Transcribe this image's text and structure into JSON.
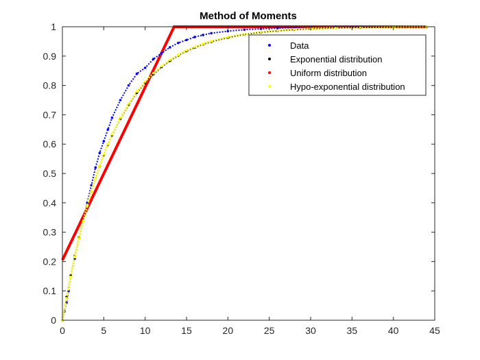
{
  "chart_data": {
    "type": "line",
    "title": "Method of Moments",
    "xlabel": "",
    "ylabel": "",
    "xlim": [
      0,
      45
    ],
    "ylim": [
      0,
      1
    ],
    "xticks": [
      "0",
      "5",
      "10",
      "15",
      "20",
      "25",
      "30",
      "35",
      "40",
      "45"
    ],
    "yticks": [
      "0",
      "0.1",
      "0.2",
      "0.3",
      "0.4",
      "0.5",
      "0.6",
      "0.7",
      "0.8",
      "0.9",
      "1"
    ],
    "grid": false,
    "legend_position": "top-right",
    "series": [
      {
        "name": "Data",
        "color": "#0000ff",
        "style": "dots",
        "x": [
          0,
          0.25,
          0.5,
          0.75,
          1,
          1.5,
          2,
          2.5,
          3,
          3.5,
          4,
          4.5,
          5,
          5.5,
          6,
          7,
          8,
          9,
          10,
          11,
          12,
          13,
          14,
          15,
          16,
          17,
          18,
          20,
          22,
          24,
          26,
          28,
          30,
          33,
          36,
          40,
          44
        ],
        "y": [
          0,
          0.03,
          0.06,
          0.1,
          0.15,
          0.21,
          0.28,
          0.34,
          0.4,
          0.46,
          0.52,
          0.57,
          0.61,
          0.65,
          0.69,
          0.75,
          0.8,
          0.84,
          0.86,
          0.89,
          0.91,
          0.93,
          0.945,
          0.955,
          0.965,
          0.972,
          0.978,
          0.985,
          0.99,
          0.993,
          0.995,
          0.997,
          0.998,
          0.999,
          1.0,
          1.0,
          1.0
        ]
      },
      {
        "name": "Exponential distribution",
        "color": "#000000",
        "style": "dots",
        "x": [
          0,
          0.5,
          1,
          1.5,
          2,
          2.5,
          3,
          3.5,
          4,
          4.5,
          5,
          5.5,
          6,
          7,
          8,
          9,
          10,
          11,
          12,
          13,
          14,
          15,
          16,
          17,
          18,
          20,
          22,
          24,
          26,
          28,
          30,
          33,
          36,
          40,
          44
        ],
        "y": [
          0,
          0.079,
          0.152,
          0.22,
          0.282,
          0.339,
          0.391,
          0.439,
          0.484,
          0.525,
          0.563,
          0.598,
          0.63,
          0.686,
          0.734,
          0.775,
          0.809,
          0.838,
          0.863,
          0.884,
          0.902,
          0.917,
          0.929,
          0.94,
          0.949,
          0.963,
          0.974,
          0.981,
          0.986,
          0.99,
          0.993,
          0.996,
          0.997,
          0.999,
          0.999
        ]
      },
      {
        "name": "Uniform distribution",
        "color": "#ff0000",
        "style": "line",
        "x": [
          0,
          13.5,
          44
        ],
        "y": [
          0.205,
          1,
          1
        ]
      },
      {
        "name": "Hypo-exponential distribution",
        "color": "#ffff00",
        "style": "dots",
        "x": [
          0,
          0.5,
          1,
          1.5,
          2,
          2.5,
          3,
          3.5,
          4,
          4.5,
          5,
          5.5,
          6,
          7,
          8,
          9,
          10,
          11,
          12,
          13,
          14,
          15,
          16,
          17,
          18,
          20,
          22,
          24,
          26,
          28,
          30,
          33,
          36,
          40,
          44
        ],
        "y": [
          0,
          0.075,
          0.148,
          0.216,
          0.279,
          0.337,
          0.39,
          0.439,
          0.484,
          0.526,
          0.565,
          0.6,
          0.633,
          0.69,
          0.738,
          0.779,
          0.813,
          0.842,
          0.866,
          0.887,
          0.904,
          0.919,
          0.931,
          0.942,
          0.951,
          0.965,
          0.975,
          0.982,
          0.987,
          0.991,
          0.994,
          0.996,
          0.998,
          0.999,
          1.0
        ]
      }
    ]
  }
}
